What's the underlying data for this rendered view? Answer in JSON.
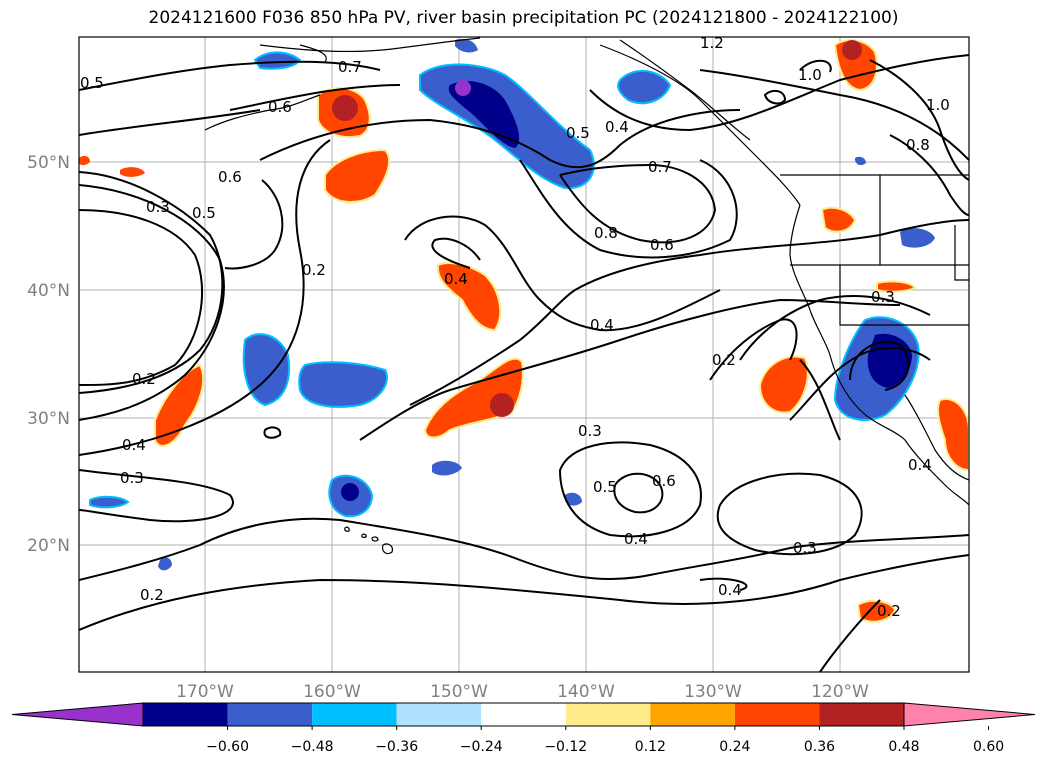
{
  "title": "2024121600 F036 850 hPa PV, river basin precipitation PC (2024121800 - 2024122100)",
  "map": {
    "latitude_labels": [
      "50°N",
      "40°N",
      "30°N",
      "20°N"
    ],
    "longitude_labels": [
      "170°W",
      "160°W",
      "150°W",
      "140°W",
      "130°W",
      "120°W"
    ]
  },
  "contour_labels": [
    "0.5",
    "0.7",
    "0.6",
    "0.6",
    "0.3",
    "0.5",
    "0.2",
    "0.2",
    "0.4",
    "0.3",
    "0.2",
    "0.4",
    "0.5",
    "0.4",
    "0.7",
    "0.8",
    "0.6",
    "0.4",
    "0.2",
    "0.3",
    "0.5",
    "0.6",
    "0.4",
    "0.3",
    "0.4",
    "1.2",
    "1.0",
    "1.0",
    "0.8",
    "0.3",
    "0.2",
    "0.4"
  ],
  "colorbar": {
    "ticks": [
      "−0.60",
      "−0.48",
      "−0.36",
      "−0.24",
      "−0.12",
      "0.12",
      "0.24",
      "0.36",
      "0.48",
      "0.60"
    ],
    "colors": [
      "#9932cc",
      "#00008b",
      "#3a5fcd",
      "#00bfff",
      "#b0e2ff",
      "#ffffff",
      "#ffec8b",
      "#ffa500",
      "#ff4500",
      "#b22222",
      "#ff82ab"
    ]
  }
}
